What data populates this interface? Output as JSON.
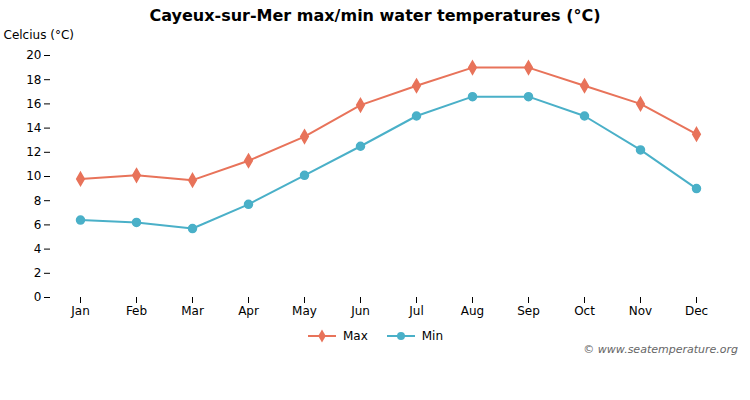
{
  "chart_data": {
    "type": "line",
    "title": "Cayeux-sur-Mer max/min water temperatures (°C)",
    "categories": [
      "Jan",
      "Feb",
      "Mar",
      "Apr",
      "May",
      "Jun",
      "Jul",
      "Aug",
      "Sep",
      "Oct",
      "Nov",
      "Dec"
    ],
    "series": [
      {
        "name": "Max",
        "color": "#e8735a",
        "marker": "diamond",
        "values": [
          9.8,
          10.1,
          9.7,
          11.3,
          13.3,
          15.9,
          17.5,
          19.0,
          19.0,
          17.5,
          16.0,
          13.5
        ]
      },
      {
        "name": "Min",
        "color": "#4ab0c8",
        "marker": "circle",
        "values": [
          6.4,
          6.2,
          5.7,
          7.7,
          10.1,
          12.5,
          15.0,
          16.6,
          16.6,
          15.0,
          12.2,
          9.0
        ]
      }
    ],
    "ylabel": "Celcius (°C)",
    "ylim": [
      0,
      20
    ],
    "yticks": [
      0,
      2,
      4,
      6,
      8,
      10,
      12,
      14,
      16,
      18,
      20
    ],
    "grid": false,
    "legend": "bottom",
    "annotations": [
      "© www.seatemperature.org"
    ]
  }
}
